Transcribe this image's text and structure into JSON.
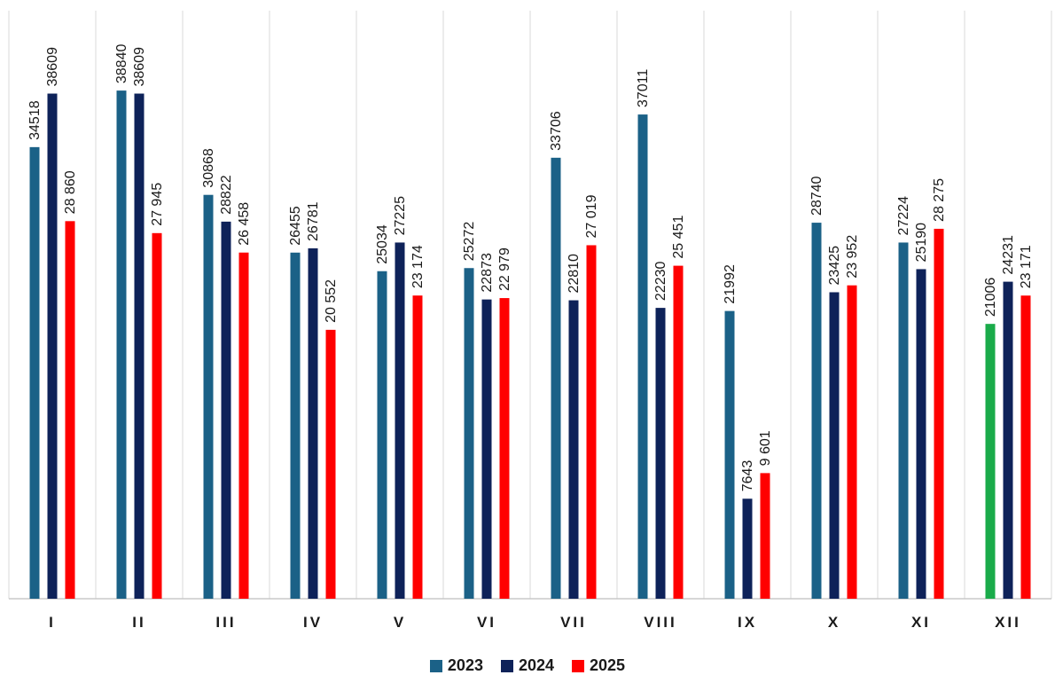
{
  "chart_data": {
    "type": "bar",
    "title": "",
    "xlabel": "",
    "ylabel": "",
    "ylim": [
      0,
      45000
    ],
    "grid": "vertical separators",
    "legend_position": "bottom",
    "categories": [
      "I",
      "II",
      "III",
      "IV",
      "V",
      "VI",
      "VII",
      "VIII",
      "IX",
      "X",
      "XI",
      "XII"
    ],
    "series": [
      {
        "name": "2023",
        "color": "#1b6187",
        "values": [
          34518,
          38840,
          30868,
          26455,
          25034,
          25272,
          33706,
          37011,
          21992,
          28740,
          27224,
          21006
        ],
        "labels": [
          "34518",
          "38840",
          "30868",
          "26455",
          "25034",
          "25272",
          "33706",
          "37011",
          "21992",
          "28740",
          "27224",
          "21006"
        ],
        "point_colors": [
          null,
          null,
          null,
          null,
          null,
          null,
          null,
          null,
          null,
          null,
          null,
          "#1aab4a"
        ]
      },
      {
        "name": "2024",
        "color": "#0e2259",
        "values": [
          38609,
          38609,
          28822,
          26781,
          27225,
          22873,
          22810,
          22230,
          7643,
          23425,
          25190,
          24231
        ],
        "labels": [
          "38609",
          "38609",
          "28822",
          "26781",
          "27225",
          "22873",
          "22810",
          "22230",
          "7643",
          "23425",
          "25190",
          "24231"
        ]
      },
      {
        "name": "2025",
        "color": "#ff0000",
        "values": [
          28860,
          27945,
          26458,
          20552,
          23174,
          22979,
          27019,
          25451,
          9601,
          23952,
          28275,
          23171
        ],
        "labels": [
          "28 860",
          "27 945",
          "26 458",
          "20 552",
          "23 174",
          "22 979",
          "27 019",
          "25 451",
          "9 601",
          "23 952",
          "28 275",
          "23 171"
        ]
      }
    ]
  }
}
